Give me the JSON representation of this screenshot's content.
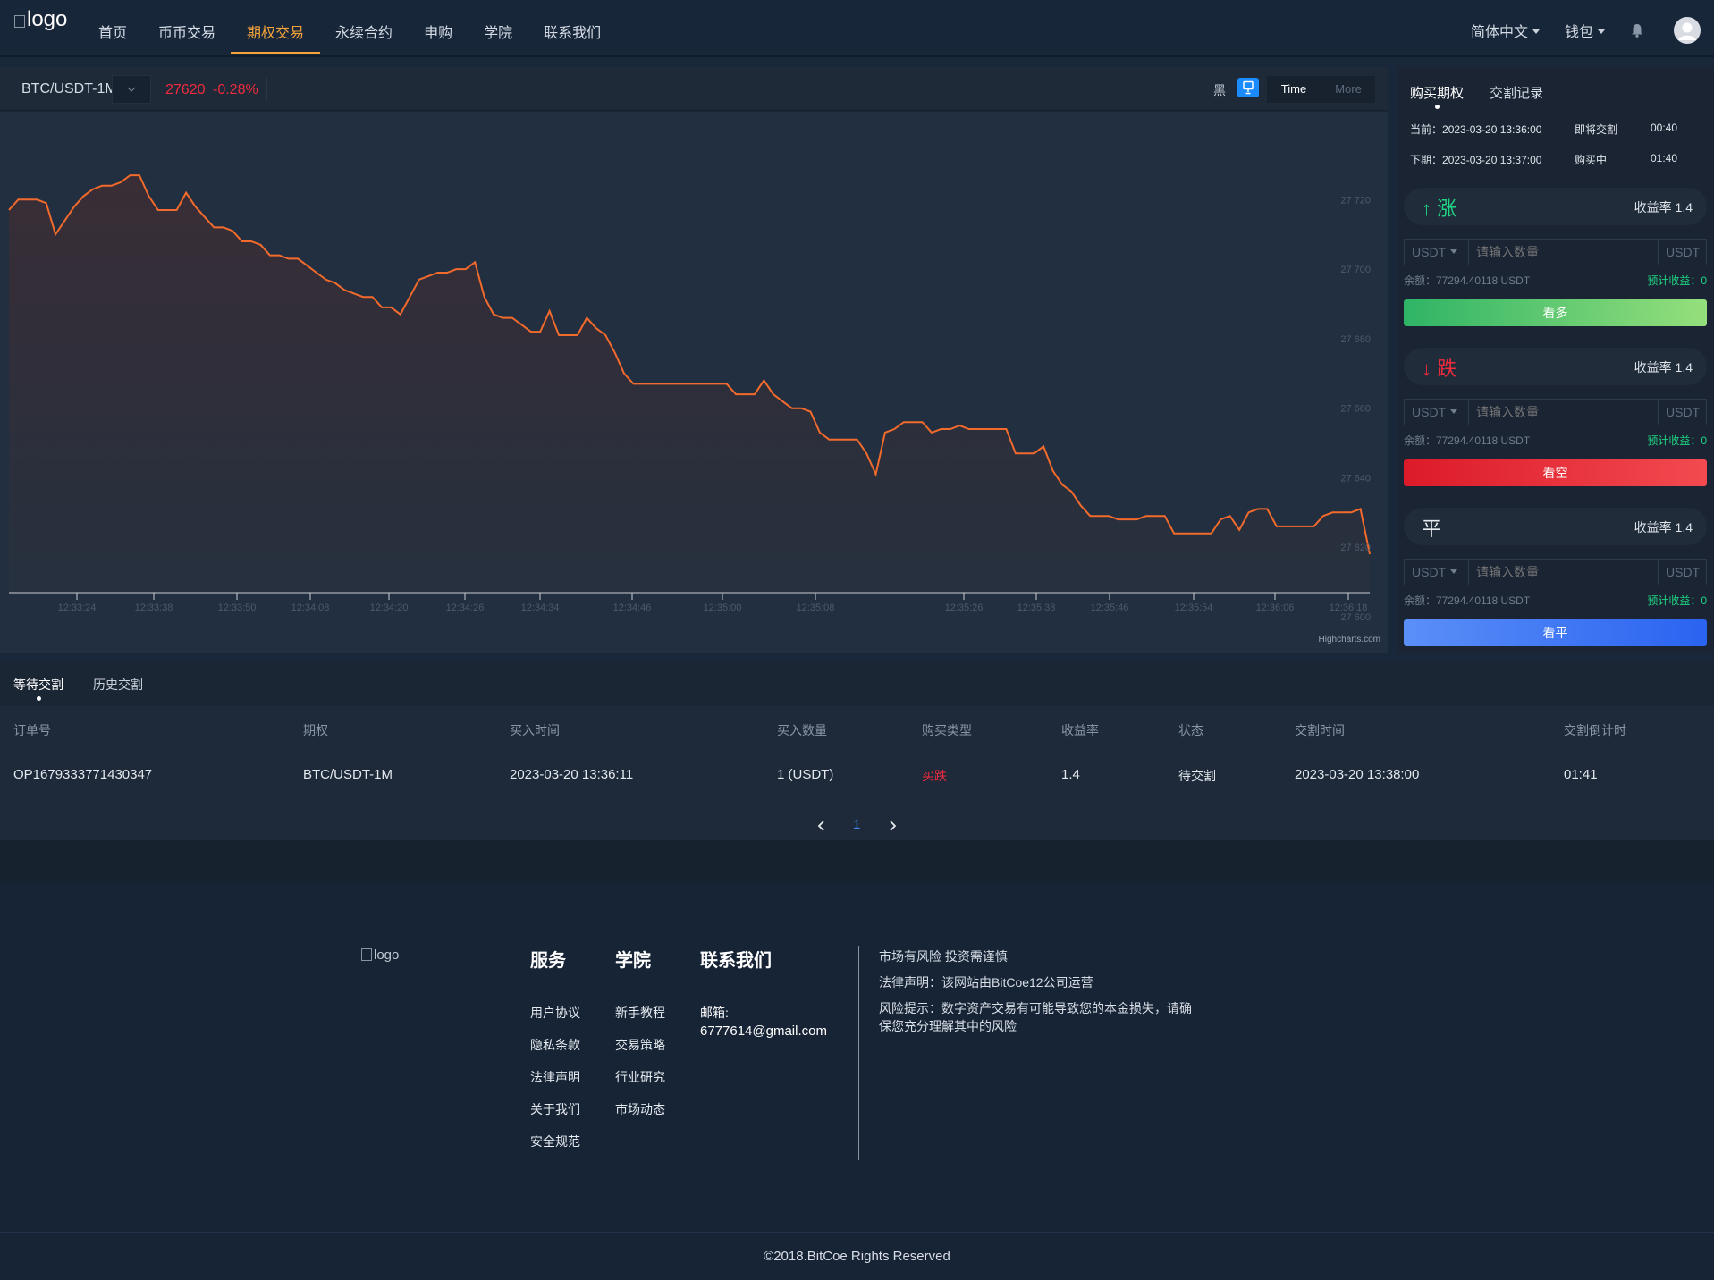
{
  "header": {
    "logo_alt": "logo",
    "nav": [
      "首页",
      "币币交易",
      "期权交易",
      "永续合约",
      "申购",
      "学院",
      "联系我们"
    ],
    "active_nav": "期权交易",
    "language": "简体中文",
    "wallet": "钱包"
  },
  "chart_toolbar": {
    "symbol": "BTC/USDT-1M",
    "price": "27620",
    "change": "-0.28%",
    "theme_label": "黑",
    "time_btn": "Time",
    "more_btn": "More",
    "credit": "Highcharts.com"
  },
  "chart_data": {
    "type": "area",
    "y_ticks": [
      "27 720",
      "27 700",
      "27 680",
      "27 660",
      "27 640",
      "27 620",
      "27 600"
    ],
    "x_ticks": [
      "12:33:24",
      "12:33:38",
      "12:33:50",
      "12:34:08",
      "12:34:20",
      "12:34:26",
      "12:34:34",
      "12:34:46",
      "12:35:00",
      "12:35:08",
      "12:35:26",
      "12:35:38",
      "12:35:46",
      "12:35:54",
      "12:36:06",
      "12:36:18"
    ],
    "ylim": [
      27600,
      27735
    ],
    "series": [
      {
        "color": "#f26a2c",
        "values": [
          27717,
          27720,
          27720,
          27720,
          27719,
          27710,
          27714,
          27718,
          27721,
          27723,
          27724,
          27724,
          27725,
          27727,
          27727,
          27721,
          27717,
          27717,
          27717,
          27722,
          27718,
          27715,
          27712,
          27712,
          27711,
          27708,
          27708,
          27707,
          27704,
          27704,
          27703,
          27703,
          27701,
          27699,
          27697,
          27696,
          27694,
          27693,
          27692,
          27692,
          27689,
          27689,
          27687,
          27692,
          27697,
          27698,
          27699,
          27699,
          27700,
          27700,
          27702,
          27692,
          27687,
          27686,
          27686,
          27684,
          27682,
          27682,
          27688,
          27681,
          27681,
          27681,
          27686,
          27683,
          27681,
          27676,
          27670,
          27667,
          27667,
          27667,
          27667,
          27667,
          27667,
          27667,
          27667,
          27667,
          27667,
          27667,
          27664,
          27664,
          27664,
          27668,
          27664,
          27662,
          27660,
          27660,
          27659,
          27653,
          27651,
          27651,
          27651,
          27651,
          27647,
          27641,
          27653,
          27654,
          27656,
          27656,
          27656,
          27653,
          27654,
          27654,
          27655,
          27654,
          27654,
          27654,
          27654,
          27654,
          27647,
          27647,
          27647,
          27649,
          27642,
          27638,
          27636,
          27632,
          27629,
          27629,
          27629,
          27628,
          27628,
          27628,
          27629,
          27629,
          27629,
          27624,
          27624,
          27624,
          27624,
          27624,
          27628,
          27629,
          27625,
          27630,
          27631,
          27631,
          27626,
          27626,
          27626,
          27626,
          27626,
          27629,
          27630,
          27630,
          27630,
          27631,
          27618
        ]
      }
    ]
  },
  "trade": {
    "tabs": [
      "购买期权",
      "交割记录"
    ],
    "current_label": "当前：",
    "current_time": "2023-03-20 13:36:00",
    "current_status": "即将交割",
    "current_countdown": "00:40",
    "next_label": "下期：",
    "next_time": "2023-03-20 13:37:00",
    "next_status": "购买中",
    "next_countdown": "01:40",
    "up_label": "↑ 涨",
    "down_label": "↓ 跌",
    "flat_label": "平",
    "rate": "收益率 1.4",
    "currency": "USDT",
    "qty_placeholder": "请输入数量",
    "balance": "余额：77294.40118 USDT",
    "expected": "预计收益：0",
    "btn_up": "看多",
    "btn_down": "看空",
    "btn_flat": "看平"
  },
  "orders": {
    "tabs": [
      "等待交割",
      "历史交割"
    ],
    "columns": [
      "订单号",
      "期权",
      "买入时间",
      "买入数量",
      "购买类型",
      "收益率",
      "状态",
      "交割时间",
      "交割倒计时"
    ],
    "rows": [
      [
        "OP1679333771430347",
        "BTC/USDT-1M",
        "2023-03-20 13:36:11",
        "1 (USDT)",
        "买跌",
        "1.4",
        "待交割",
        "2023-03-20 13:38:00",
        "01:41"
      ]
    ],
    "page": "1"
  },
  "footer": {
    "logo_alt": "logo",
    "services_title": "服务",
    "services": [
      "用户协议",
      "隐私条款",
      "法律声明",
      "关于我们",
      "安全规范"
    ],
    "academy_title": "学院",
    "academy": [
      "新手教程",
      "交易策略",
      "行业研究",
      "市场动态"
    ],
    "contact_title": "联系我们",
    "email_label": "邮箱:",
    "email": "6777614@gmail.com",
    "notes": [
      "市场有风险 投资需谨慎",
      "法律声明：该网站由BitCoe12公司运营",
      "风险提示：数字资产交易有可能导致您的本金损失，请确保您充分理解其中的风险"
    ],
    "copyright": "©2018.BitCoe Rights Reserved"
  },
  "colors": {
    "accent": "#f2a33a",
    "up": "#1ed684",
    "down": "#ef2b3d",
    "flat": "#2f6df5",
    "line": "#f26a2c"
  }
}
